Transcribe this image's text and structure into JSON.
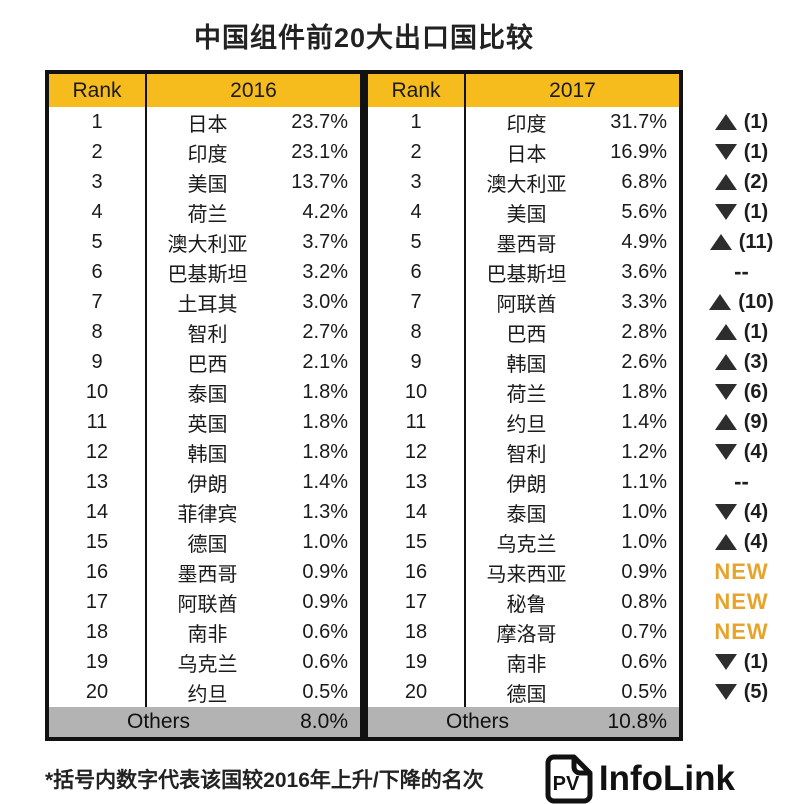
{
  "title": "中国组件前20大出口国比较",
  "colors": {
    "header_yellow": "#F6BC1E",
    "others_gray": "#B3B3B3",
    "new_orange": "#E8A32C",
    "triangle_dark": "#2D2D2D",
    "border_black": "#111111"
  },
  "table": {
    "rank_header": "Rank",
    "left": {
      "year": "2016",
      "others_label": "Others",
      "others_pct": "8.0%",
      "rows": [
        {
          "rank": "1",
          "country": "日本",
          "pct": "23.7%"
        },
        {
          "rank": "2",
          "country": "印度",
          "pct": "23.1%"
        },
        {
          "rank": "3",
          "country": "美国",
          "pct": "13.7%"
        },
        {
          "rank": "4",
          "country": "荷兰",
          "pct": "4.2%"
        },
        {
          "rank": "5",
          "country": "澳大利亚",
          "pct": "3.7%"
        },
        {
          "rank": "6",
          "country": "巴基斯坦",
          "pct": "3.2%"
        },
        {
          "rank": "7",
          "country": "土耳其",
          "pct": "3.0%"
        },
        {
          "rank": "8",
          "country": "智利",
          "pct": "2.7%"
        },
        {
          "rank": "9",
          "country": "巴西",
          "pct": "2.1%"
        },
        {
          "rank": "10",
          "country": "泰国",
          "pct": "1.8%"
        },
        {
          "rank": "11",
          "country": "英国",
          "pct": "1.8%"
        },
        {
          "rank": "12",
          "country": "韩国",
          "pct": "1.8%"
        },
        {
          "rank": "13",
          "country": "伊朗",
          "pct": "1.4%"
        },
        {
          "rank": "14",
          "country": "菲律宾",
          "pct": "1.3%"
        },
        {
          "rank": "15",
          "country": "德国",
          "pct": "1.0%"
        },
        {
          "rank": "16",
          "country": "墨西哥",
          "pct": "0.9%"
        },
        {
          "rank": "17",
          "country": "阿联酋",
          "pct": "0.9%"
        },
        {
          "rank": "18",
          "country": "南非",
          "pct": "0.6%"
        },
        {
          "rank": "19",
          "country": "乌克兰",
          "pct": "0.6%"
        },
        {
          "rank": "20",
          "country": "约旦",
          "pct": "0.5%"
        }
      ]
    },
    "right": {
      "year": "2017",
      "others_label": "Others",
      "others_pct": "10.8%",
      "rows": [
        {
          "rank": "1",
          "country": "印度",
          "pct": "31.7%"
        },
        {
          "rank": "2",
          "country": "日本",
          "pct": "16.9%"
        },
        {
          "rank": "3",
          "country": "澳大利亚",
          "pct": "6.8%"
        },
        {
          "rank": "4",
          "country": "美国",
          "pct": "5.6%"
        },
        {
          "rank": "5",
          "country": "墨西哥",
          "pct": "4.9%"
        },
        {
          "rank": "6",
          "country": "巴基斯坦",
          "pct": "3.6%"
        },
        {
          "rank": "7",
          "country": "阿联酋",
          "pct": "3.3%"
        },
        {
          "rank": "8",
          "country": "巴西",
          "pct": "2.8%"
        },
        {
          "rank": "9",
          "country": "韩国",
          "pct": "2.6%"
        },
        {
          "rank": "10",
          "country": "荷兰",
          "pct": "1.8%"
        },
        {
          "rank": "11",
          "country": "约旦",
          "pct": "1.4%"
        },
        {
          "rank": "12",
          "country": "智利",
          "pct": "1.2%"
        },
        {
          "rank": "13",
          "country": "伊朗",
          "pct": "1.1%"
        },
        {
          "rank": "14",
          "country": "泰国",
          "pct": "1.0%"
        },
        {
          "rank": "15",
          "country": "乌克兰",
          "pct": "1.0%"
        },
        {
          "rank": "16",
          "country": "马来西亚",
          "pct": "0.9%"
        },
        {
          "rank": "17",
          "country": "秘鲁",
          "pct": "0.8%"
        },
        {
          "rank": "18",
          "country": "摩洛哥",
          "pct": "0.7%"
        },
        {
          "rank": "19",
          "country": "南非",
          "pct": "0.6%"
        },
        {
          "rank": "20",
          "country": "德国",
          "pct": "0.5%"
        }
      ]
    }
  },
  "changes": [
    {
      "dir": "up",
      "label": "(1)"
    },
    {
      "dir": "down",
      "label": "(1)"
    },
    {
      "dir": "up",
      "label": "(2)"
    },
    {
      "dir": "down",
      "label": "(1)"
    },
    {
      "dir": "up",
      "label": "(11)"
    },
    {
      "dir": "same",
      "label": "--"
    },
    {
      "dir": "up",
      "label": "(10)"
    },
    {
      "dir": "up",
      "label": "(1)"
    },
    {
      "dir": "up",
      "label": "(3)"
    },
    {
      "dir": "down",
      "label": "(6)"
    },
    {
      "dir": "up",
      "label": "(9)"
    },
    {
      "dir": "down",
      "label": "(4)"
    },
    {
      "dir": "same",
      "label": "--"
    },
    {
      "dir": "down",
      "label": "(4)"
    },
    {
      "dir": "up",
      "label": "(4)"
    },
    {
      "dir": "new",
      "label": "NEW"
    },
    {
      "dir": "new",
      "label": "NEW"
    },
    {
      "dir": "new",
      "label": "NEW"
    },
    {
      "dir": "down",
      "label": "(1)"
    },
    {
      "dir": "down",
      "label": "(5)"
    }
  ],
  "footnote": "*括号内数字代表该国较2016年上升/下降的名次",
  "logo": {
    "pv": "PV",
    "name": "InfoLink"
  },
  "chart_data": {
    "type": "table",
    "title": "中国组件前20大出口国比较",
    "columns": [
      "Rank",
      "2016 Country",
      "2016 Share",
      "Rank",
      "2017 Country",
      "2017 Share",
      "Rank Change vs 2016"
    ],
    "series": [
      {
        "name": "2016",
        "categories": [
          "日本",
          "印度",
          "美国",
          "荷兰",
          "澳大利亚",
          "巴基斯坦",
          "土耳其",
          "智利",
          "巴西",
          "泰国",
          "英国",
          "韩国",
          "伊朗",
          "菲律宾",
          "德国",
          "墨西哥",
          "阿联酋",
          "南非",
          "乌克兰",
          "约旦"
        ],
        "values": [
          23.7,
          23.1,
          13.7,
          4.2,
          3.7,
          3.2,
          3.0,
          2.7,
          2.1,
          1.8,
          1.8,
          1.8,
          1.4,
          1.3,
          1.0,
          0.9,
          0.9,
          0.6,
          0.6,
          0.5
        ],
        "others": 8.0,
        "unit": "%"
      },
      {
        "name": "2017",
        "categories": [
          "印度",
          "日本",
          "澳大利亚",
          "美国",
          "墨西哥",
          "巴基斯坦",
          "阿联酋",
          "巴西",
          "韩国",
          "荷兰",
          "约旦",
          "智利",
          "伊朗",
          "泰国",
          "乌克兰",
          "马来西亚",
          "秘鲁",
          "摩洛哥",
          "南非",
          "德国"
        ],
        "values": [
          31.7,
          16.9,
          6.8,
          5.6,
          4.9,
          3.6,
          3.3,
          2.8,
          2.6,
          1.8,
          1.4,
          1.2,
          1.1,
          1.0,
          1.0,
          0.9,
          0.8,
          0.7,
          0.6,
          0.5
        ],
        "others": 10.8,
        "unit": "%"
      }
    ],
    "rank_changes_2017_vs_2016": [
      "+1",
      "-1",
      "+2",
      "-1",
      "+11",
      "0",
      "+10",
      "+1",
      "+3",
      "-6",
      "+9",
      "-4",
      "0",
      "-4",
      "+4",
      "NEW",
      "NEW",
      "NEW",
      "-1",
      "-5"
    ]
  }
}
